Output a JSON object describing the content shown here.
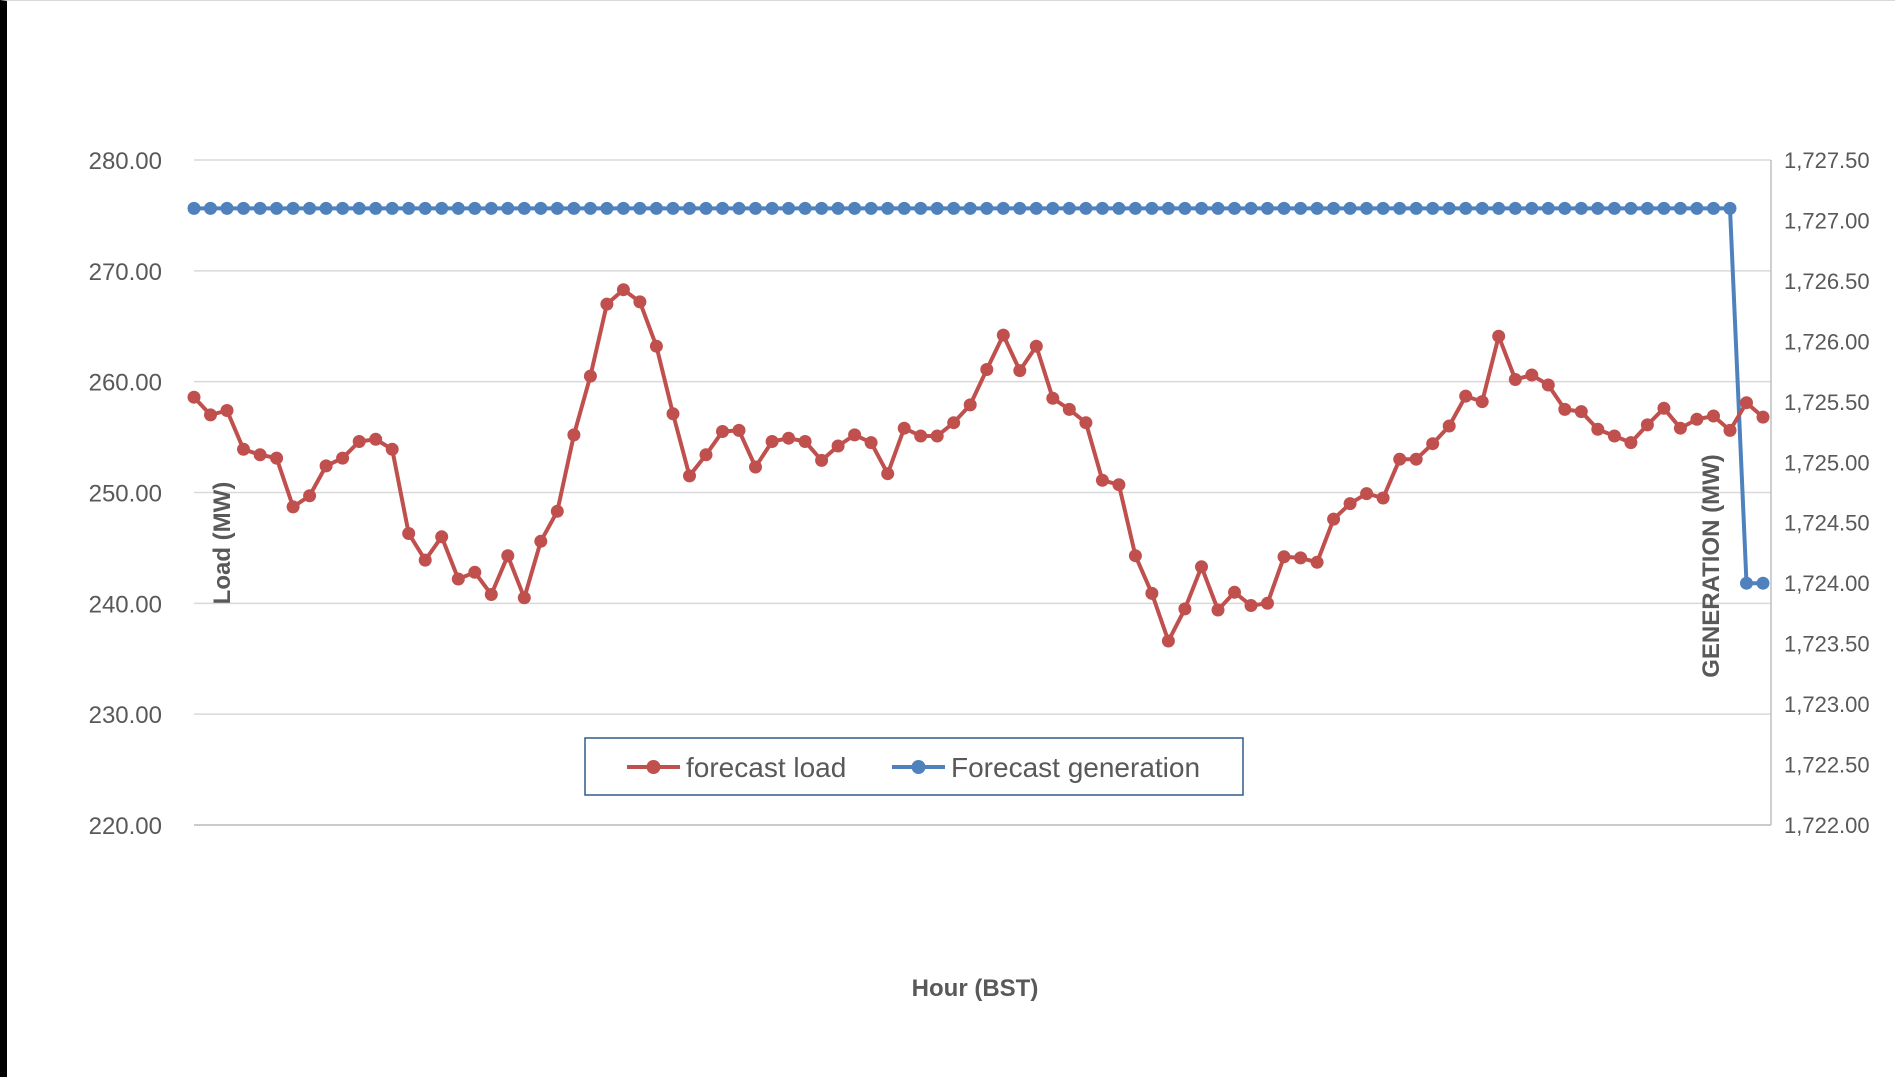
{
  "chart_data": {
    "type": "line",
    "title": "",
    "xlabel": "Hour (BST)",
    "ylabel": "Load (MW)",
    "y2label": "GENERATION (MW)",
    "ylim": [
      220,
      280
    ],
    "y2lim": [
      1722,
      1727.5
    ],
    "yticks": [
      "220.00",
      "230.00",
      "240.00",
      "250.00",
      "260.00",
      "270.00",
      "280.00"
    ],
    "y2ticks": [
      "1,722.00",
      "1,722.50",
      "1,723.00",
      "1,723.50",
      "1,724.00",
      "1,724.50",
      "1,725.00",
      "1,725.50",
      "1,726.00",
      "1,726.50",
      "1,727.00",
      "1,727.50"
    ],
    "grid": true,
    "legend_position": "bottom-center",
    "series": [
      {
        "name": "forecast load",
        "axis": "left",
        "color": "#c0504d",
        "marker": "circle",
        "values": [
          258.6,
          257.0,
          257.4,
          253.9,
          253.4,
          253.1,
          248.7,
          249.7,
          252.4,
          253.1,
          254.6,
          254.8,
          253.9,
          246.3,
          243.9,
          246.0,
          242.2,
          242.8,
          240.8,
          244.3,
          240.5,
          245.6,
          248.3,
          255.2,
          260.5,
          267.0,
          268.3,
          267.2,
          263.2,
          257.1,
          251.5,
          253.4,
          255.5,
          255.6,
          252.3,
          254.6,
          254.9,
          254.6,
          252.9,
          254.2,
          255.2,
          254.5,
          251.7,
          255.8,
          255.1,
          255.1,
          256.3,
          257.9,
          261.1,
          264.2,
          261.0,
          263.2,
          258.5,
          257.5,
          256.3,
          251.1,
          250.7,
          244.3,
          240.9,
          236.6,
          239.5,
          243.3,
          239.4,
          241.0,
          239.8,
          240.0,
          244.2,
          244.1,
          243.7,
          247.6,
          249.0,
          249.9,
          249.5,
          253.0,
          253.0,
          254.4,
          256.0,
          258.7,
          258.2,
          264.1,
          260.2,
          260.6,
          259.7,
          257.5,
          257.3,
          255.7,
          255.1,
          254.5,
          256.1,
          257.6,
          255.8,
          256.6,
          256.9,
          255.6,
          258.1,
          256.8
        ]
      },
      {
        "name": "Forecast generation",
        "axis": "right",
        "color": "#4f81bd",
        "marker": "circle",
        "values": [
          1727.1,
          1727.1,
          1727.1,
          1727.1,
          1727.1,
          1727.1,
          1727.1,
          1727.1,
          1727.1,
          1727.1,
          1727.1,
          1727.1,
          1727.1,
          1727.1,
          1727.1,
          1727.1,
          1727.1,
          1727.1,
          1727.1,
          1727.1,
          1727.1,
          1727.1,
          1727.1,
          1727.1,
          1727.1,
          1727.1,
          1727.1,
          1727.1,
          1727.1,
          1727.1,
          1727.1,
          1727.1,
          1727.1,
          1727.1,
          1727.1,
          1727.1,
          1727.1,
          1727.1,
          1727.1,
          1727.1,
          1727.1,
          1727.1,
          1727.1,
          1727.1,
          1727.1,
          1727.1,
          1727.1,
          1727.1,
          1727.1,
          1727.1,
          1727.1,
          1727.1,
          1727.1,
          1727.1,
          1727.1,
          1727.1,
          1727.1,
          1727.1,
          1727.1,
          1727.1,
          1727.1,
          1727.1,
          1727.1,
          1727.1,
          1727.1,
          1727.1,
          1727.1,
          1727.1,
          1727.1,
          1727.1,
          1727.1,
          1727.1,
          1727.1,
          1727.1,
          1727.1,
          1727.1,
          1727.1,
          1727.1,
          1727.1,
          1727.1,
          1727.1,
          1727.1,
          1727.1,
          1727.1,
          1727.1,
          1727.1,
          1727.1,
          1727.1,
          1727.1,
          1727.1,
          1727.1,
          1727.1,
          1727.1,
          1727.1,
          1724.0,
          1724.0
        ]
      }
    ]
  }
}
